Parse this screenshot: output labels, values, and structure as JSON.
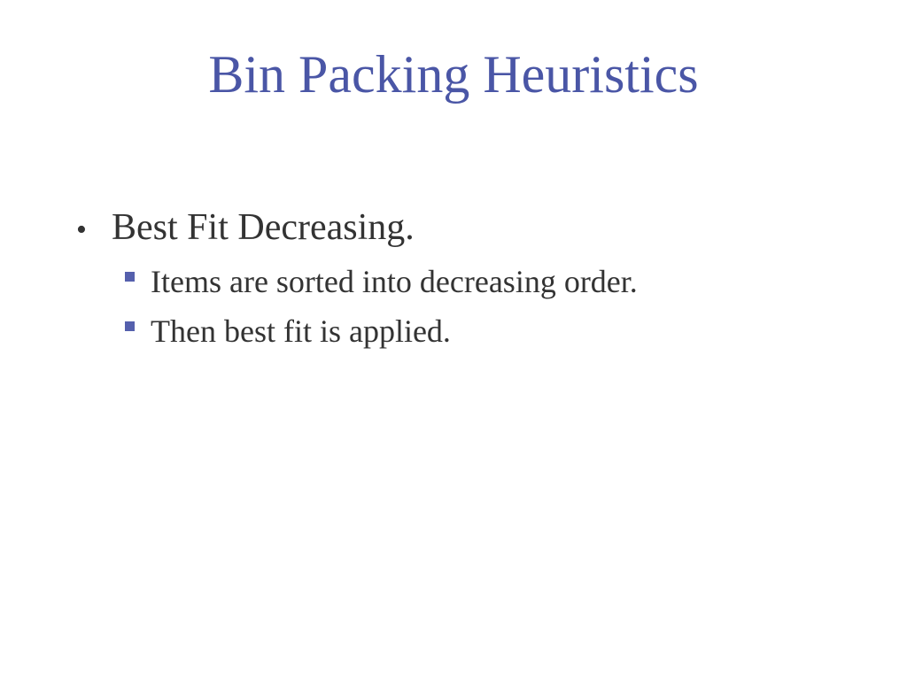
{
  "slide": {
    "title": "Bin Packing Heuristics",
    "bullets": [
      {
        "marker": "•",
        "text": "Best Fit Decreasing.",
        "sub_items": [
          {
            "text": "Items are sorted into decreasing order."
          },
          {
            "text": "Then best fit is applied."
          }
        ]
      }
    ]
  },
  "colors": {
    "title": "#4a56a6",
    "body_text": "#333333",
    "sub_bullet_marker": "#5560ad",
    "background": "#ffffff"
  },
  "icons": {
    "bullet": "bullet-dot-icon",
    "sub_bullet": "square-bullet-icon"
  }
}
